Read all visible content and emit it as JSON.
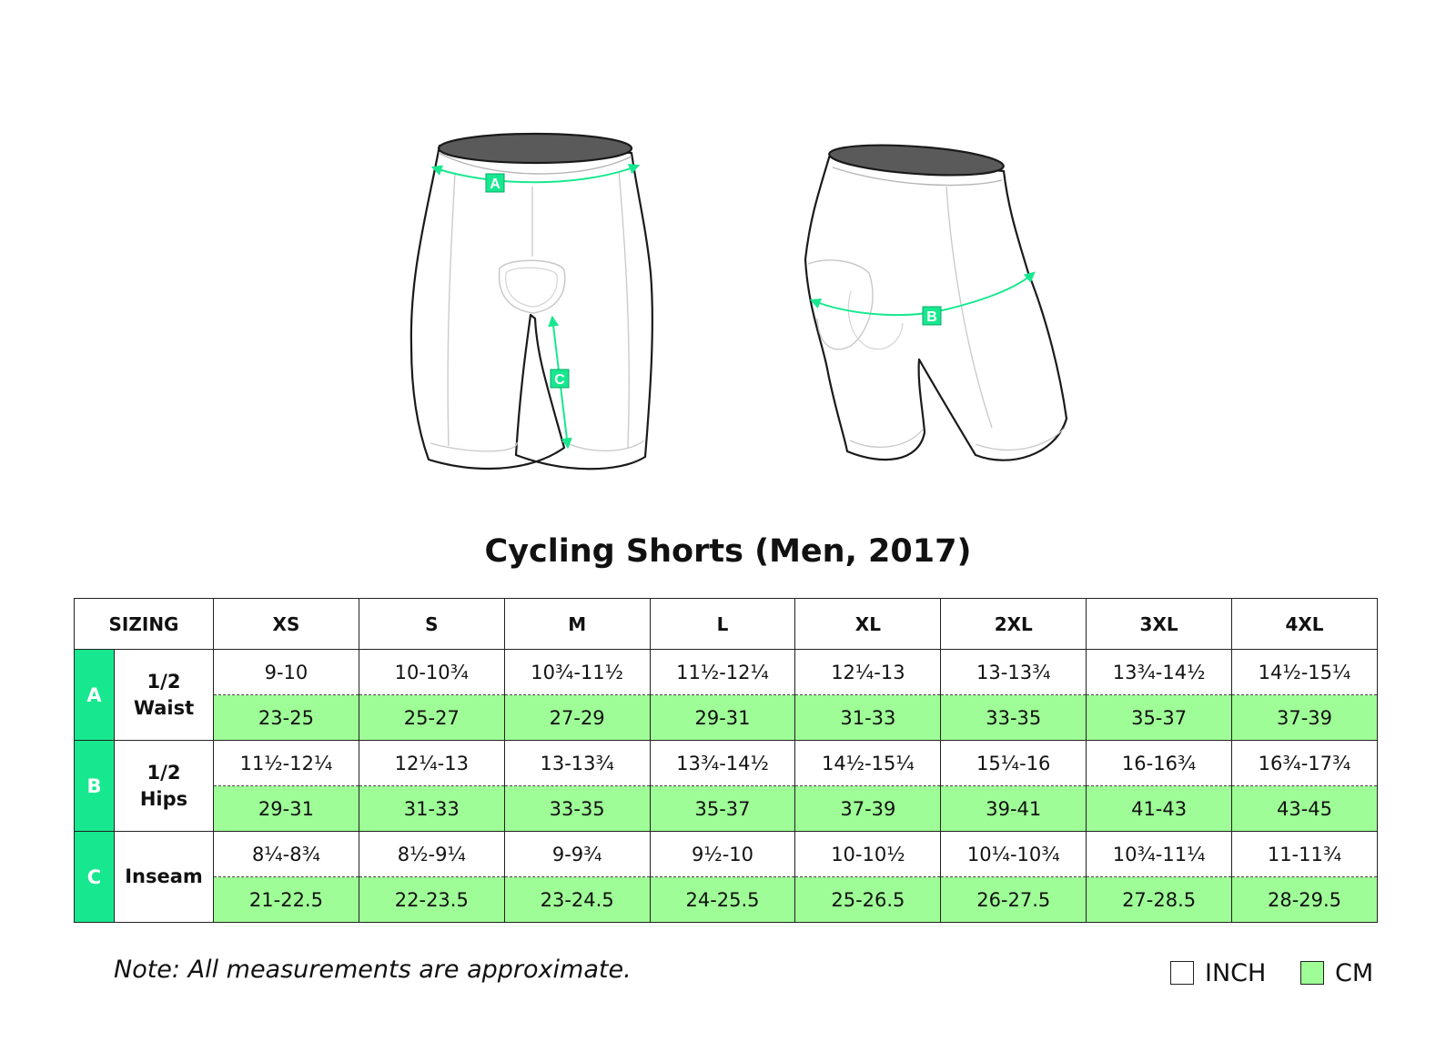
{
  "diagram": {
    "markers": {
      "waist": "A",
      "hips": "B",
      "inseam": "C"
    },
    "colors": {
      "measure_line": "#17e88f",
      "marker_bg": "#17e88f",
      "outline": "#1a1a1a",
      "seam": "#b5b5b5",
      "waistband_inner": "#5a5a5a"
    }
  },
  "title": "Cycling Shorts (Men, 2017)",
  "table": {
    "corner_label": "SIZING",
    "sizes": [
      "XS",
      "S",
      "M",
      "L",
      "XL",
      "2XL",
      "3XL",
      "4XL"
    ],
    "rows": [
      {
        "letter": "A",
        "label_lines": [
          "1/2",
          "Waist"
        ],
        "inch": [
          "9-10",
          "10-10¾",
          "10¾-11½",
          "11½-12¼",
          "12¼-13",
          "13-13¾",
          "13¾-14½",
          "14½-15¼"
        ],
        "cm": [
          "23-25",
          "25-27",
          "27-29",
          "29-31",
          "31-33",
          "33-35",
          "35-37",
          "37-39"
        ]
      },
      {
        "letter": "B",
        "label_lines": [
          "1/2",
          "Hips"
        ],
        "inch": [
          "11½-12¼",
          "12¼-13",
          "13-13¾",
          "13¾-14½",
          "14½-15¼",
          "15¼-16",
          "16-16¾",
          "16¾-17¾"
        ],
        "cm": [
          "29-31",
          "31-33",
          "33-35",
          "35-37",
          "37-39",
          "39-41",
          "41-43",
          "43-45"
        ]
      },
      {
        "letter": "C",
        "label_lines": [
          "Inseam"
        ],
        "inch": [
          "8¼-8¾",
          "8½-9¼",
          "9-9¾",
          "9½-10",
          "10-10½",
          "10¼-10¾",
          "10¾-11¼",
          "11-11¾"
        ],
        "cm": [
          "21-22.5",
          "22-23.5",
          "23-24.5",
          "24-25.5",
          "25-26.5",
          "26-27.5",
          "27-28.5",
          "28-29.5"
        ]
      }
    ],
    "colors": {
      "letter_bg": "#17e88f",
      "cm_bg": "#9efd96",
      "inch_bg": "#ffffff"
    }
  },
  "note": "Note: All measurements are approximate.",
  "legend": {
    "inch": {
      "label": "INCH",
      "color": "#ffffff"
    },
    "cm": {
      "label": "CM",
      "color": "#9efd96"
    }
  }
}
